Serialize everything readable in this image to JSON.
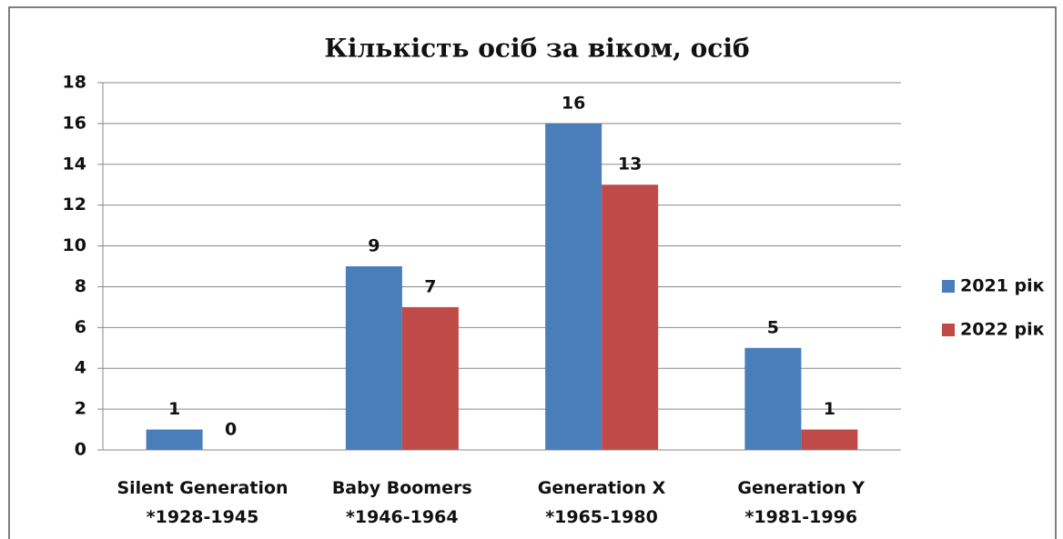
{
  "chart_data": {
    "type": "bar",
    "title": "Кількість осіб за віком, осіб",
    "categories": [
      "Silent Generation\n*1928-1945",
      "Baby Boomers\n*1946-1964",
      "Generation X\n*1965-1980",
      "Generation Y\n*1981-1996"
    ],
    "series": [
      {
        "name": "2021 рік",
        "color": "#4a7ebb",
        "values": [
          1,
          9,
          16,
          5
        ]
      },
      {
        "name": "2022 рік",
        "color": "#be4b48",
        "values": [
          0,
          7,
          13,
          1
        ]
      }
    ],
    "ylim": [
      0,
      18
    ],
    "yticks": [
      0,
      2,
      4,
      6,
      8,
      10,
      12,
      14,
      16,
      18
    ],
    "grid": true,
    "legend": "right"
  }
}
